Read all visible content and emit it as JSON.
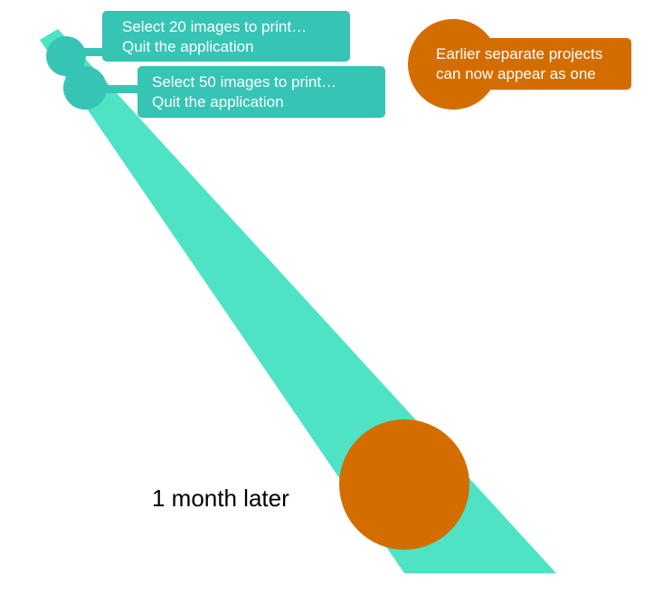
{
  "callouts": {
    "select_20": {
      "line1": "Select 20 images to print…",
      "line2": "Quit the application"
    },
    "select_50": {
      "line1": "Select 50 images to print…",
      "line2": "Quit the application"
    },
    "merge": {
      "line1": "Earlier separate projects",
      "line2": "can now appear as one"
    }
  },
  "time_label": "1 month later",
  "colors": {
    "beam": "#4ee3c4",
    "teal": "#36c4b5",
    "orange": "#d46d00",
    "text_light": "#ffffff",
    "text_dark": "#000000"
  }
}
